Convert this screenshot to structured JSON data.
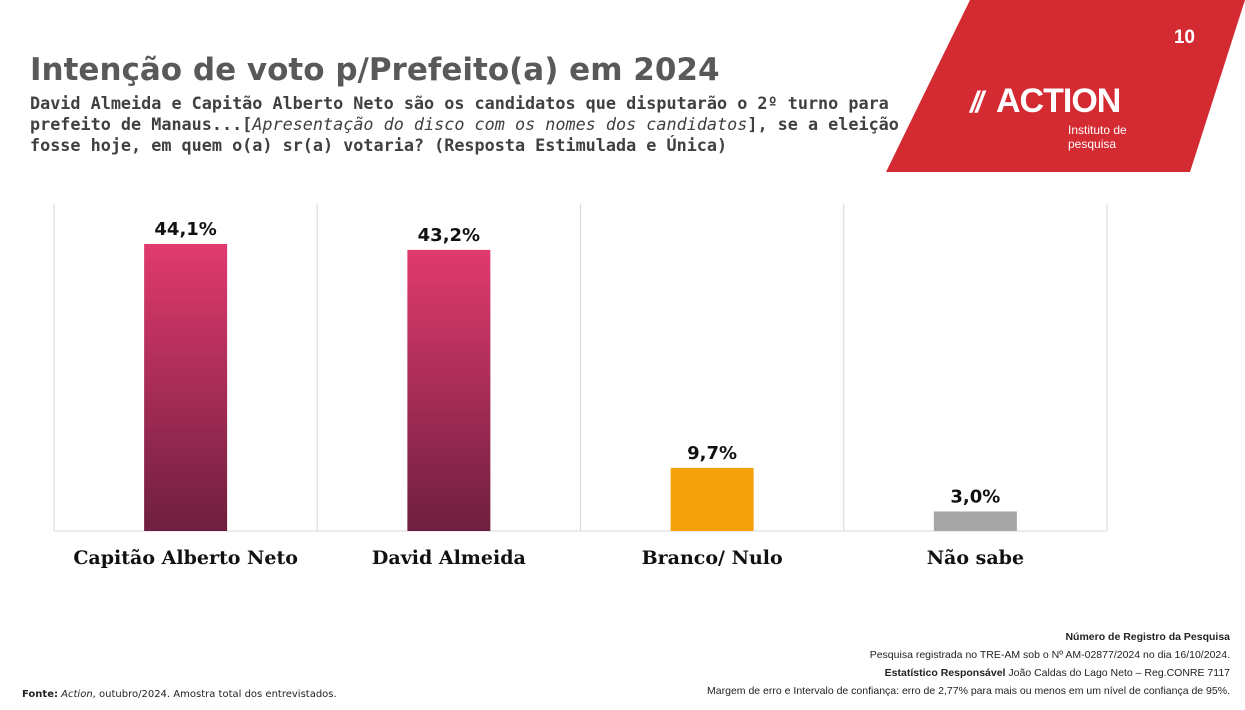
{
  "page_number": "10",
  "header": {
    "title": "Intenção de voto p/Prefeito(a) em 2024",
    "question_part1": "David Almeida e Capitão Alberto Neto são os candidatos que disputarão o 2º turno para prefeito de Manaus...[",
    "question_italic": "Apresentação do disco com os nomes dos candidatos",
    "question_part2": "], se a eleição fosse hoje, em quem o(a) sr(a) votaria? (Resposta Estimulada e Única)"
  },
  "brand": {
    "logo_slashes": "//",
    "logo_word": "ACTION",
    "logo_subtitle": "Instituto de pesquisa",
    "color": "#d42a32"
  },
  "chart_data": {
    "type": "bar",
    "categories": [
      "Capitão Alberto Neto",
      "David Almeida",
      "Branco/ Nulo",
      "Não sabe"
    ],
    "values": [
      44.1,
      43.2,
      9.7,
      3.0
    ],
    "value_labels": [
      "44,1%",
      "43,2%",
      "9,7%",
      "3,0%"
    ],
    "unit": "%",
    "ylim": [
      0,
      50
    ],
    "grid": false,
    "colors": {
      "candidate_top": "#e13a6e",
      "candidate_bottom": "#6e1f3f",
      "branco_nulo": "#f4a10c",
      "nao_sabe": "#a6a6a6",
      "plot_border": "#d9d9d9"
    },
    "bar_fill": [
      "candidate",
      "candidate",
      "branco_nulo",
      "nao_sabe"
    ]
  },
  "footer": {
    "registry_heading": "Número de Registro da Pesquisa",
    "registry_line": "Pesquisa registrada no TRE-AM sob o Nº AM-02877/2024 no dia 16/10/2024.",
    "statistician_label": "Estatístico Responsável",
    "statistician_value": " João Caldas do Lago Neto – Reg.CONRE 7117",
    "margin_line": "Margem de erro e Intervalo de confiança: erro de 2,77% para mais ou menos em um nível de confiança de 95%.",
    "source_label": "Fonte:",
    "source_brand": "Action",
    "source_rest": ", outubro/2024. Amostra total dos entrevistados."
  }
}
